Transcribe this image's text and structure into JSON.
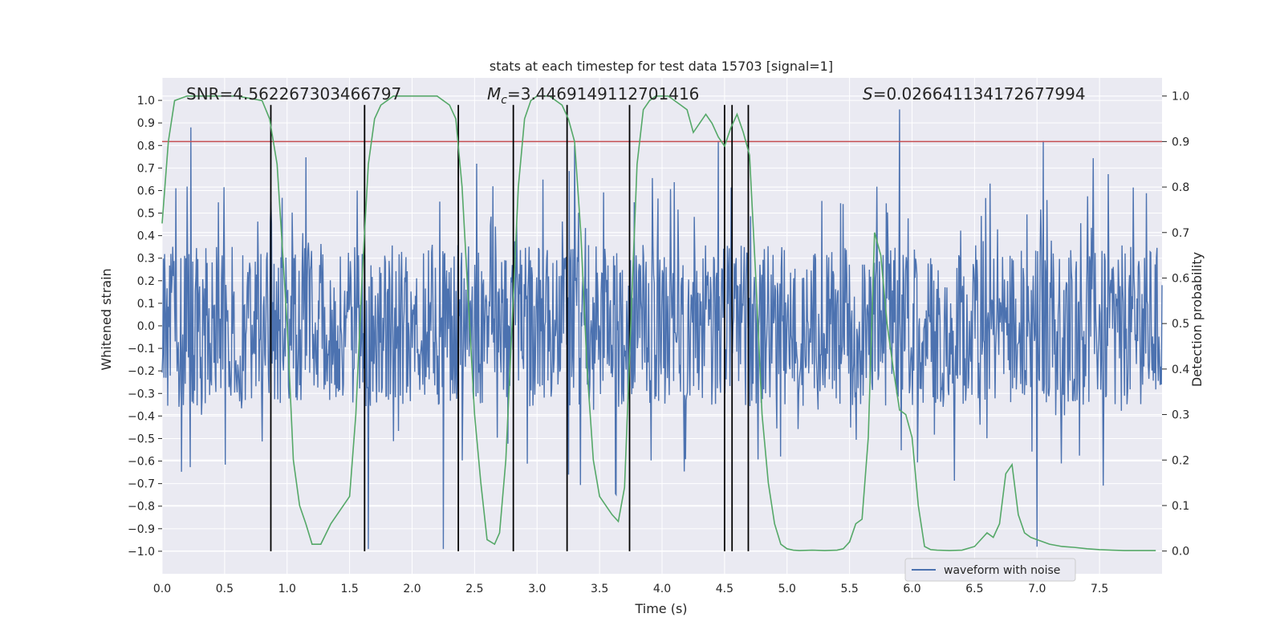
{
  "chart_data": {
    "type": "line",
    "title": "stats at each timestep for test data 15703 [signal=1]",
    "xlabel": "Time (s)",
    "ylabel": "Whitened strain",
    "y2label": "Detection probability",
    "xlim": [
      0,
      8
    ],
    "ylim": [
      -1.1,
      1.1
    ],
    "y2lim": [
      -0.05,
      1.04
    ],
    "xticks": [
      "0.0",
      "0.5",
      "1.0",
      "1.5",
      "2.0",
      "2.5",
      "3.0",
      "3.5",
      "4.0",
      "4.5",
      "5.0",
      "5.5",
      "6.0",
      "6.5",
      "7.0",
      "7.5"
    ],
    "xtick_values": [
      0,
      0.5,
      1,
      1.5,
      2,
      2.5,
      3,
      3.5,
      4,
      4.5,
      5,
      5.5,
      6,
      6.5,
      7,
      7.5
    ],
    "yticks": [
      "1.0",
      "0.9",
      "0.8",
      "0.7",
      "0.6",
      "0.5",
      "0.4",
      "0.3",
      "0.2",
      "0.1",
      "0.0",
      "−0.1",
      "−0.2",
      "−0.3",
      "−0.4",
      "−0.5",
      "−0.6",
      "−0.7",
      "−0.8",
      "−0.9",
      "−1.0"
    ],
    "ytick_values": [
      1.0,
      0.9,
      0.8,
      0.7,
      0.6,
      0.5,
      0.4,
      0.3,
      0.2,
      0.1,
      0.0,
      -0.1,
      -0.2,
      -0.3,
      -0.4,
      -0.5,
      -0.6,
      -0.7,
      -0.8,
      -0.9,
      -1.0
    ],
    "y2ticks": [
      "1.0",
      "0.9",
      "0.8",
      "0.7",
      "0.6",
      "0.5",
      "0.4",
      "0.3",
      "0.2",
      "0.1",
      "0.0"
    ],
    "y2tick_values": [
      1.0,
      0.9,
      0.8,
      0.7,
      0.6,
      0.5,
      0.4,
      0.3,
      0.2,
      0.1,
      0.0
    ],
    "annotations": {
      "snr": "SNR=4.562267303466797",
      "mc_symbol": "M",
      "mc_sub": "c",
      "mc_value": "=3.4469149112701416",
      "s_symbol": "S",
      "s_value": "=0.026641134172677994"
    },
    "legend": {
      "label": "waveform with noise",
      "position": "lower-right"
    },
    "threshold": {
      "value": 0.9,
      "axis": "y2",
      "color": "#c44e52"
    },
    "vertical_markers": [
      0.87,
      1.62,
      2.37,
      2.81,
      3.24,
      3.74,
      4.5,
      4.56,
      4.69
    ],
    "marker_ymin": -1.0,
    "marker_ymax": 0.98,
    "waveform": {
      "name": "waveform with noise",
      "color": "#4c72b0",
      "duration": 8.0,
      "samples": 1600,
      "envelope_base": 0.36,
      "peak_max": 0.96,
      "min_low": -1.0
    },
    "probability": {
      "name": "detection probability",
      "color": "#55a868",
      "x": [
        0.0,
        0.05,
        0.1,
        0.2,
        0.4,
        0.6,
        0.8,
        0.86,
        0.92,
        1.0,
        1.05,
        1.1,
        1.15,
        1.2,
        1.27,
        1.35,
        1.45,
        1.5,
        1.55,
        1.6,
        1.65,
        1.7,
        1.75,
        1.85,
        2.0,
        2.2,
        2.3,
        2.35,
        2.4,
        2.45,
        2.5,
        2.55,
        2.6,
        2.66,
        2.7,
        2.75,
        2.8,
        2.85,
        2.9,
        2.95,
        3.0,
        3.1,
        3.2,
        3.25,
        3.3,
        3.35,
        3.4,
        3.45,
        3.5,
        3.55,
        3.6,
        3.65,
        3.7,
        3.75,
        3.8,
        3.85,
        3.9,
        3.95,
        4.0,
        4.05,
        4.1,
        4.15,
        4.2,
        4.25,
        4.3,
        4.35,
        4.4,
        4.45,
        4.5,
        4.55,
        4.6,
        4.65,
        4.7,
        4.75,
        4.8,
        4.85,
        4.9,
        4.95,
        5.0,
        5.05,
        5.1,
        5.2,
        5.3,
        5.4,
        5.45,
        5.5,
        5.55,
        5.6,
        5.65,
        5.7,
        5.75,
        5.8,
        5.85,
        5.9,
        5.95,
        6.0,
        6.05,
        6.1,
        6.15,
        6.2,
        6.3,
        6.4,
        6.5,
        6.55,
        6.6,
        6.65,
        6.7,
        6.75,
        6.8,
        6.85,
        6.9,
        6.95,
        7.0,
        7.1,
        7.2,
        7.3,
        7.4,
        7.5,
        7.6,
        7.7,
        7.8,
        7.9,
        7.95
      ],
      "y": [
        0.72,
        0.9,
        0.99,
        1.0,
        1.0,
        1.0,
        0.99,
        0.95,
        0.85,
        0.5,
        0.2,
        0.1,
        0.06,
        0.015,
        0.015,
        0.06,
        0.1,
        0.12,
        0.3,
        0.6,
        0.85,
        0.95,
        0.98,
        1.0,
        1.0,
        1.0,
        0.98,
        0.95,
        0.8,
        0.55,
        0.3,
        0.15,
        0.025,
        0.015,
        0.04,
        0.2,
        0.5,
        0.8,
        0.95,
        0.99,
        1.0,
        1.0,
        0.98,
        0.95,
        0.9,
        0.7,
        0.4,
        0.2,
        0.12,
        0.1,
        0.08,
        0.065,
        0.14,
        0.5,
        0.85,
        0.97,
        0.99,
        1.0,
        1.0,
        1.0,
        0.99,
        0.98,
        0.97,
        0.92,
        0.94,
        0.96,
        0.94,
        0.91,
        0.89,
        0.93,
        0.96,
        0.92,
        0.87,
        0.6,
        0.3,
        0.15,
        0.06,
        0.015,
        0.005,
        0.002,
        0.001,
        0.002,
        0.001,
        0.002,
        0.005,
        0.02,
        0.06,
        0.07,
        0.25,
        0.7,
        0.65,
        0.5,
        0.4,
        0.31,
        0.3,
        0.25,
        0.1,
        0.01,
        0.003,
        0.002,
        0.001,
        0.002,
        0.01,
        0.025,
        0.04,
        0.03,
        0.06,
        0.17,
        0.19,
        0.08,
        0.04,
        0.03,
        0.025,
        0.015,
        0.01,
        0.008,
        0.005,
        0.003,
        0.002,
        0.001,
        0.001,
        0.001,
        0.001
      ]
    }
  }
}
